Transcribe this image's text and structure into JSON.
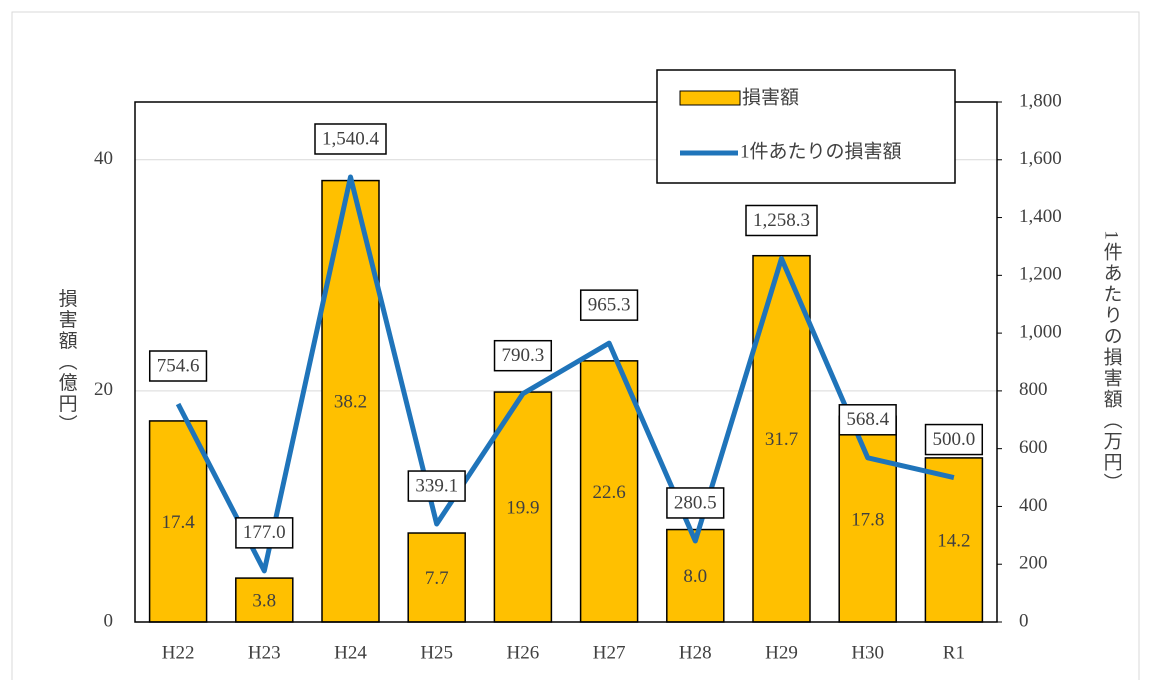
{
  "chart_data": {
    "type": "bar",
    "categories": [
      "H22",
      "H23",
      "H24",
      "H25",
      "H26",
      "H27",
      "H28",
      "H29",
      "H30",
      "R1"
    ],
    "series": [
      {
        "name": "損害額",
        "type": "bar",
        "color": "#FFC000",
        "values": [
          17.4,
          3.8,
          38.2,
          7.7,
          19.9,
          22.6,
          8.0,
          31.7,
          17.8,
          14.2
        ],
        "value_labels": [
          "17.4",
          "3.8",
          "38.2",
          "7.7",
          "19.9",
          "22.6",
          "8.0",
          "31.7",
          "17.8",
          "14.2"
        ]
      },
      {
        "name": "1件あたりの損害額",
        "type": "line",
        "axis": "y2",
        "color": "#1F74BA",
        "values": [
          754.6,
          177.0,
          1540.4,
          339.1,
          790.3,
          965.3,
          280.5,
          1258.3,
          568.4,
          500.0
        ],
        "value_labels": [
          "754.6",
          "177.0",
          "1,540.4",
          "339.1",
          "790.3",
          "965.3",
          "280.5",
          "1,258.3",
          "568.4",
          "500.0"
        ]
      }
    ],
    "ylabel": "損害額（億円）",
    "y2label": "1件あたりの損害額（万円）",
    "ylim": [
      0,
      45
    ],
    "yticks": [
      0,
      20,
      40
    ],
    "y2lim": [
      0,
      1800
    ],
    "y2ticks": [
      0,
      200,
      400,
      600,
      800,
      {
        "value": 1000,
        "label": "1,000"
      },
      {
        "value": 1200,
        "label": "1,200"
      },
      {
        "value": 1400,
        "label": "1,400"
      },
      {
        "value": 1600,
        "label": "1,600"
      },
      {
        "value": 1800,
        "label": "1,800"
      }
    ],
    "grid": true,
    "legend": "top-right"
  }
}
